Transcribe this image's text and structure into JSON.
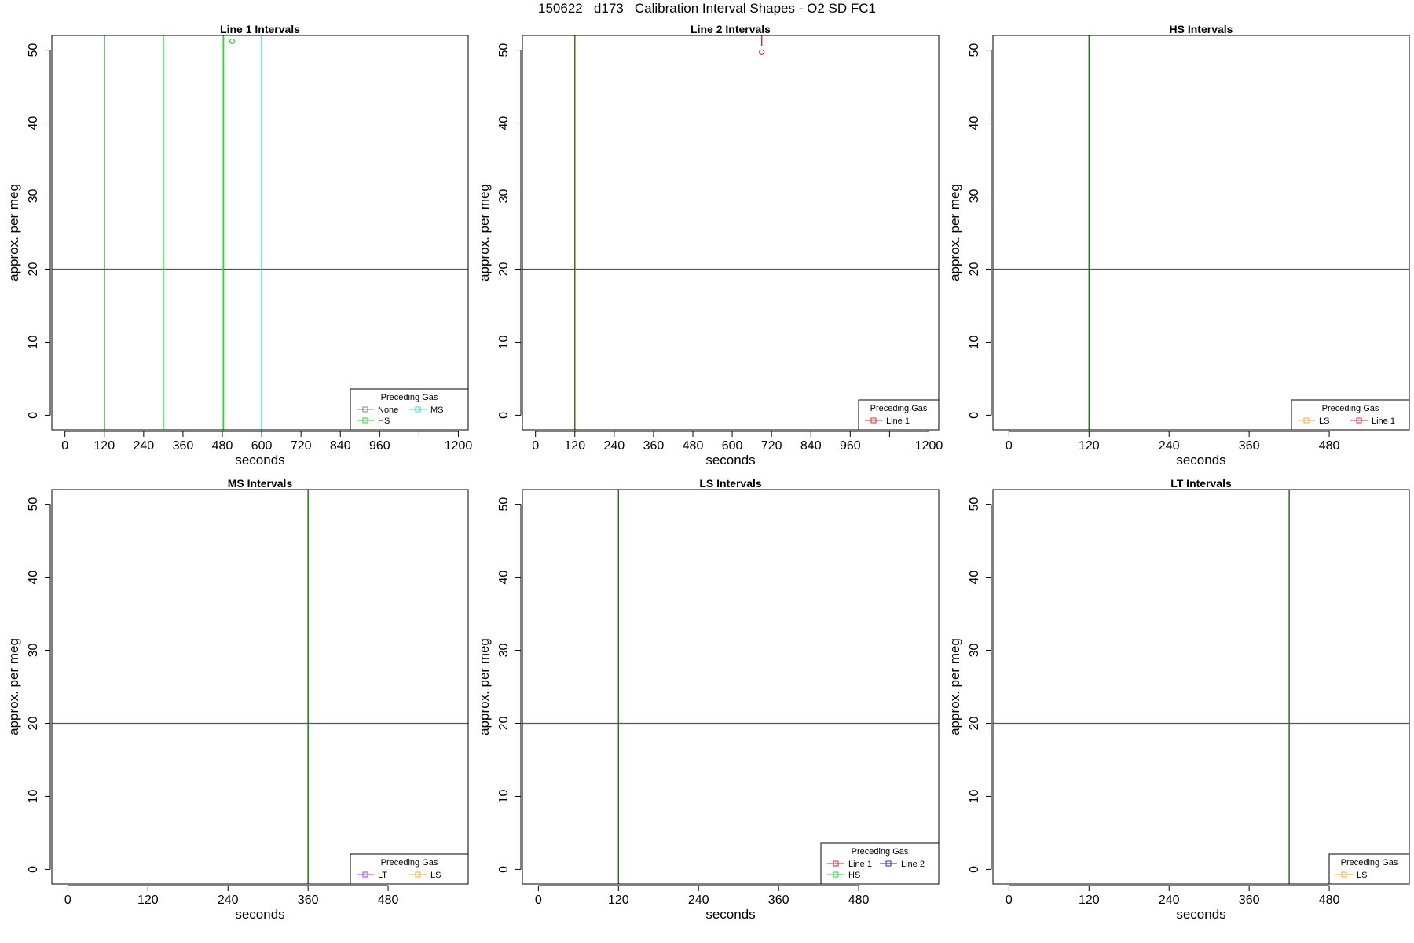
{
  "title": "150622   d173   Calibration Interval Shapes - O2 SD FC1",
  "colors": {
    "gray": "#888888",
    "green": "#22dd22",
    "cyan": "#22ddee",
    "red": "#ee2222",
    "blue": "#2222ee",
    "purple": "#aa33ee",
    "orange": "#ffaa22",
    "darkgreen": "#1b7a1b",
    "olive": "#556b00",
    "hline": "#555555"
  },
  "chart_data": [
    {
      "type": "line",
      "title": "Line 1 Intervals",
      "xlabel": "seconds",
      "ylabel": "approx. per meg",
      "xlim": [
        -40,
        1230
      ],
      "ylim": [
        -2,
        52
      ],
      "xticks": [
        0,
        120,
        240,
        360,
        480,
        600,
        720,
        840,
        960,
        1080,
        1200
      ],
      "xtick_labels": [
        "0",
        "120",
        "240",
        "360",
        "480",
        "600",
        "720",
        "840",
        "960",
        "",
        "1200"
      ],
      "yticks": [
        0,
        10,
        20,
        30,
        40,
        50
      ],
      "hline": 20,
      "vlines": [
        {
          "x": 120,
          "color": "darkgreen"
        },
        {
          "x": 300,
          "color": "green"
        },
        {
          "x": 483,
          "color": "green"
        },
        {
          "x": 600,
          "color": "cyan"
        }
      ],
      "points": [
        {
          "x": 510,
          "y": 51.2,
          "color": "green"
        }
      ],
      "legend": {
        "title": "Preceding Gas",
        "position": "bottom-right",
        "rows": [
          [
            {
              "name": "None",
              "color": "gray"
            },
            {
              "name": "MS",
              "color": "cyan"
            }
          ],
          [
            {
              "name": "HS",
              "color": "green"
            }
          ]
        ]
      }
    },
    {
      "type": "line",
      "title": "Line 2 Intervals",
      "xlabel": "seconds",
      "ylabel": "approx. per meg",
      "xlim": [
        -40,
        1230
      ],
      "ylim": [
        -2,
        52
      ],
      "xticks": [
        0,
        120,
        240,
        360,
        480,
        600,
        720,
        840,
        960,
        1080,
        1200
      ],
      "xtick_labels": [
        "0",
        "120",
        "240",
        "360",
        "480",
        "600",
        "720",
        "840",
        "960",
        "",
        "1200"
      ],
      "yticks": [
        0,
        10,
        20,
        30,
        40,
        50
      ],
      "hline": 20,
      "vlines": [
        {
          "x": 120,
          "color": "olive"
        }
      ],
      "points": [
        {
          "x": 690,
          "y": 49.7,
          "color": "red"
        }
      ],
      "segments": [
        {
          "x1": 690,
          "y1": 50.6,
          "x2": 690,
          "y2": 52,
          "color": "red"
        }
      ],
      "legend": {
        "title": "Preceding Gas",
        "position": "bottom-right",
        "rows": [
          [
            {
              "name": "Line 1",
              "color": "red"
            }
          ]
        ]
      }
    },
    {
      "type": "line",
      "title": "HS Intervals",
      "xlabel": "seconds",
      "ylabel": "approx. per meg",
      "xlim": [
        -24,
        600
      ],
      "ylim": [
        -2,
        52
      ],
      "xticks": [
        0,
        120,
        240,
        360,
        480
      ],
      "xtick_labels": [
        "0",
        "120",
        "240",
        "360",
        "480"
      ],
      "yticks": [
        0,
        10,
        20,
        30,
        40,
        50
      ],
      "hline": 20,
      "vlines": [
        {
          "x": 120,
          "color": "darkgreen"
        }
      ],
      "points": [],
      "legend": {
        "title": "Preceding Gas",
        "position": "bottom-right",
        "rows": [
          [
            {
              "name": "LS",
              "color": "orange"
            },
            {
              "name": "Line 1",
              "color": "red"
            }
          ]
        ]
      }
    },
    {
      "type": "line",
      "title": "MS Intervals",
      "xlabel": "seconds",
      "ylabel": "approx. per meg",
      "xlim": [
        -24,
        600
      ],
      "ylim": [
        -2,
        52
      ],
      "xticks": [
        0,
        120,
        240,
        360,
        480
      ],
      "xtick_labels": [
        "0",
        "120",
        "240",
        "360",
        "480"
      ],
      "yticks": [
        0,
        10,
        20,
        30,
        40,
        50
      ],
      "hline": 20,
      "vlines": [
        {
          "x": 360,
          "color": "darkgreen"
        }
      ],
      "points": [],
      "legend": {
        "title": "Preceding Gas",
        "position": "bottom-right",
        "rows": [
          [
            {
              "name": "LT",
              "color": "purple"
            },
            {
              "name": "LS",
              "color": "orange"
            }
          ]
        ]
      }
    },
    {
      "type": "line",
      "title": "LS Intervals",
      "xlabel": "seconds",
      "ylabel": "approx. per meg",
      "xlim": [
        -24,
        600
      ],
      "ylim": [
        -2,
        52
      ],
      "xticks": [
        0,
        120,
        240,
        360,
        480
      ],
      "xtick_labels": [
        "0",
        "120",
        "240",
        "360",
        "480"
      ],
      "yticks": [
        0,
        10,
        20,
        30,
        40,
        50
      ],
      "hline": 20,
      "vlines": [
        {
          "x": 120,
          "color": "darkgreen"
        }
      ],
      "points": [],
      "legend": {
        "title": "Preceding Gas",
        "position": "bottom-right",
        "rows": [
          [
            {
              "name": "Line 1",
              "color": "red"
            },
            {
              "name": "Line 2",
              "color": "blue"
            }
          ],
          [
            {
              "name": "HS",
              "color": "green"
            }
          ]
        ]
      }
    },
    {
      "type": "line",
      "title": "LT Intervals",
      "xlabel": "seconds",
      "ylabel": "approx. per meg",
      "xlim": [
        -24,
        600
      ],
      "ylim": [
        -2,
        52
      ],
      "xticks": [
        0,
        120,
        240,
        360,
        480
      ],
      "xtick_labels": [
        "0",
        "120",
        "240",
        "360",
        "480"
      ],
      "yticks": [
        0,
        10,
        20,
        30,
        40,
        50
      ],
      "hline": 20,
      "vlines": [
        {
          "x": 420,
          "color": "darkgreen"
        }
      ],
      "points": [],
      "legend": {
        "title": "Preceding Gas",
        "position": "bottom-right",
        "rows": [
          [
            {
              "name": "LS",
              "color": "orange"
            }
          ]
        ]
      }
    }
  ]
}
